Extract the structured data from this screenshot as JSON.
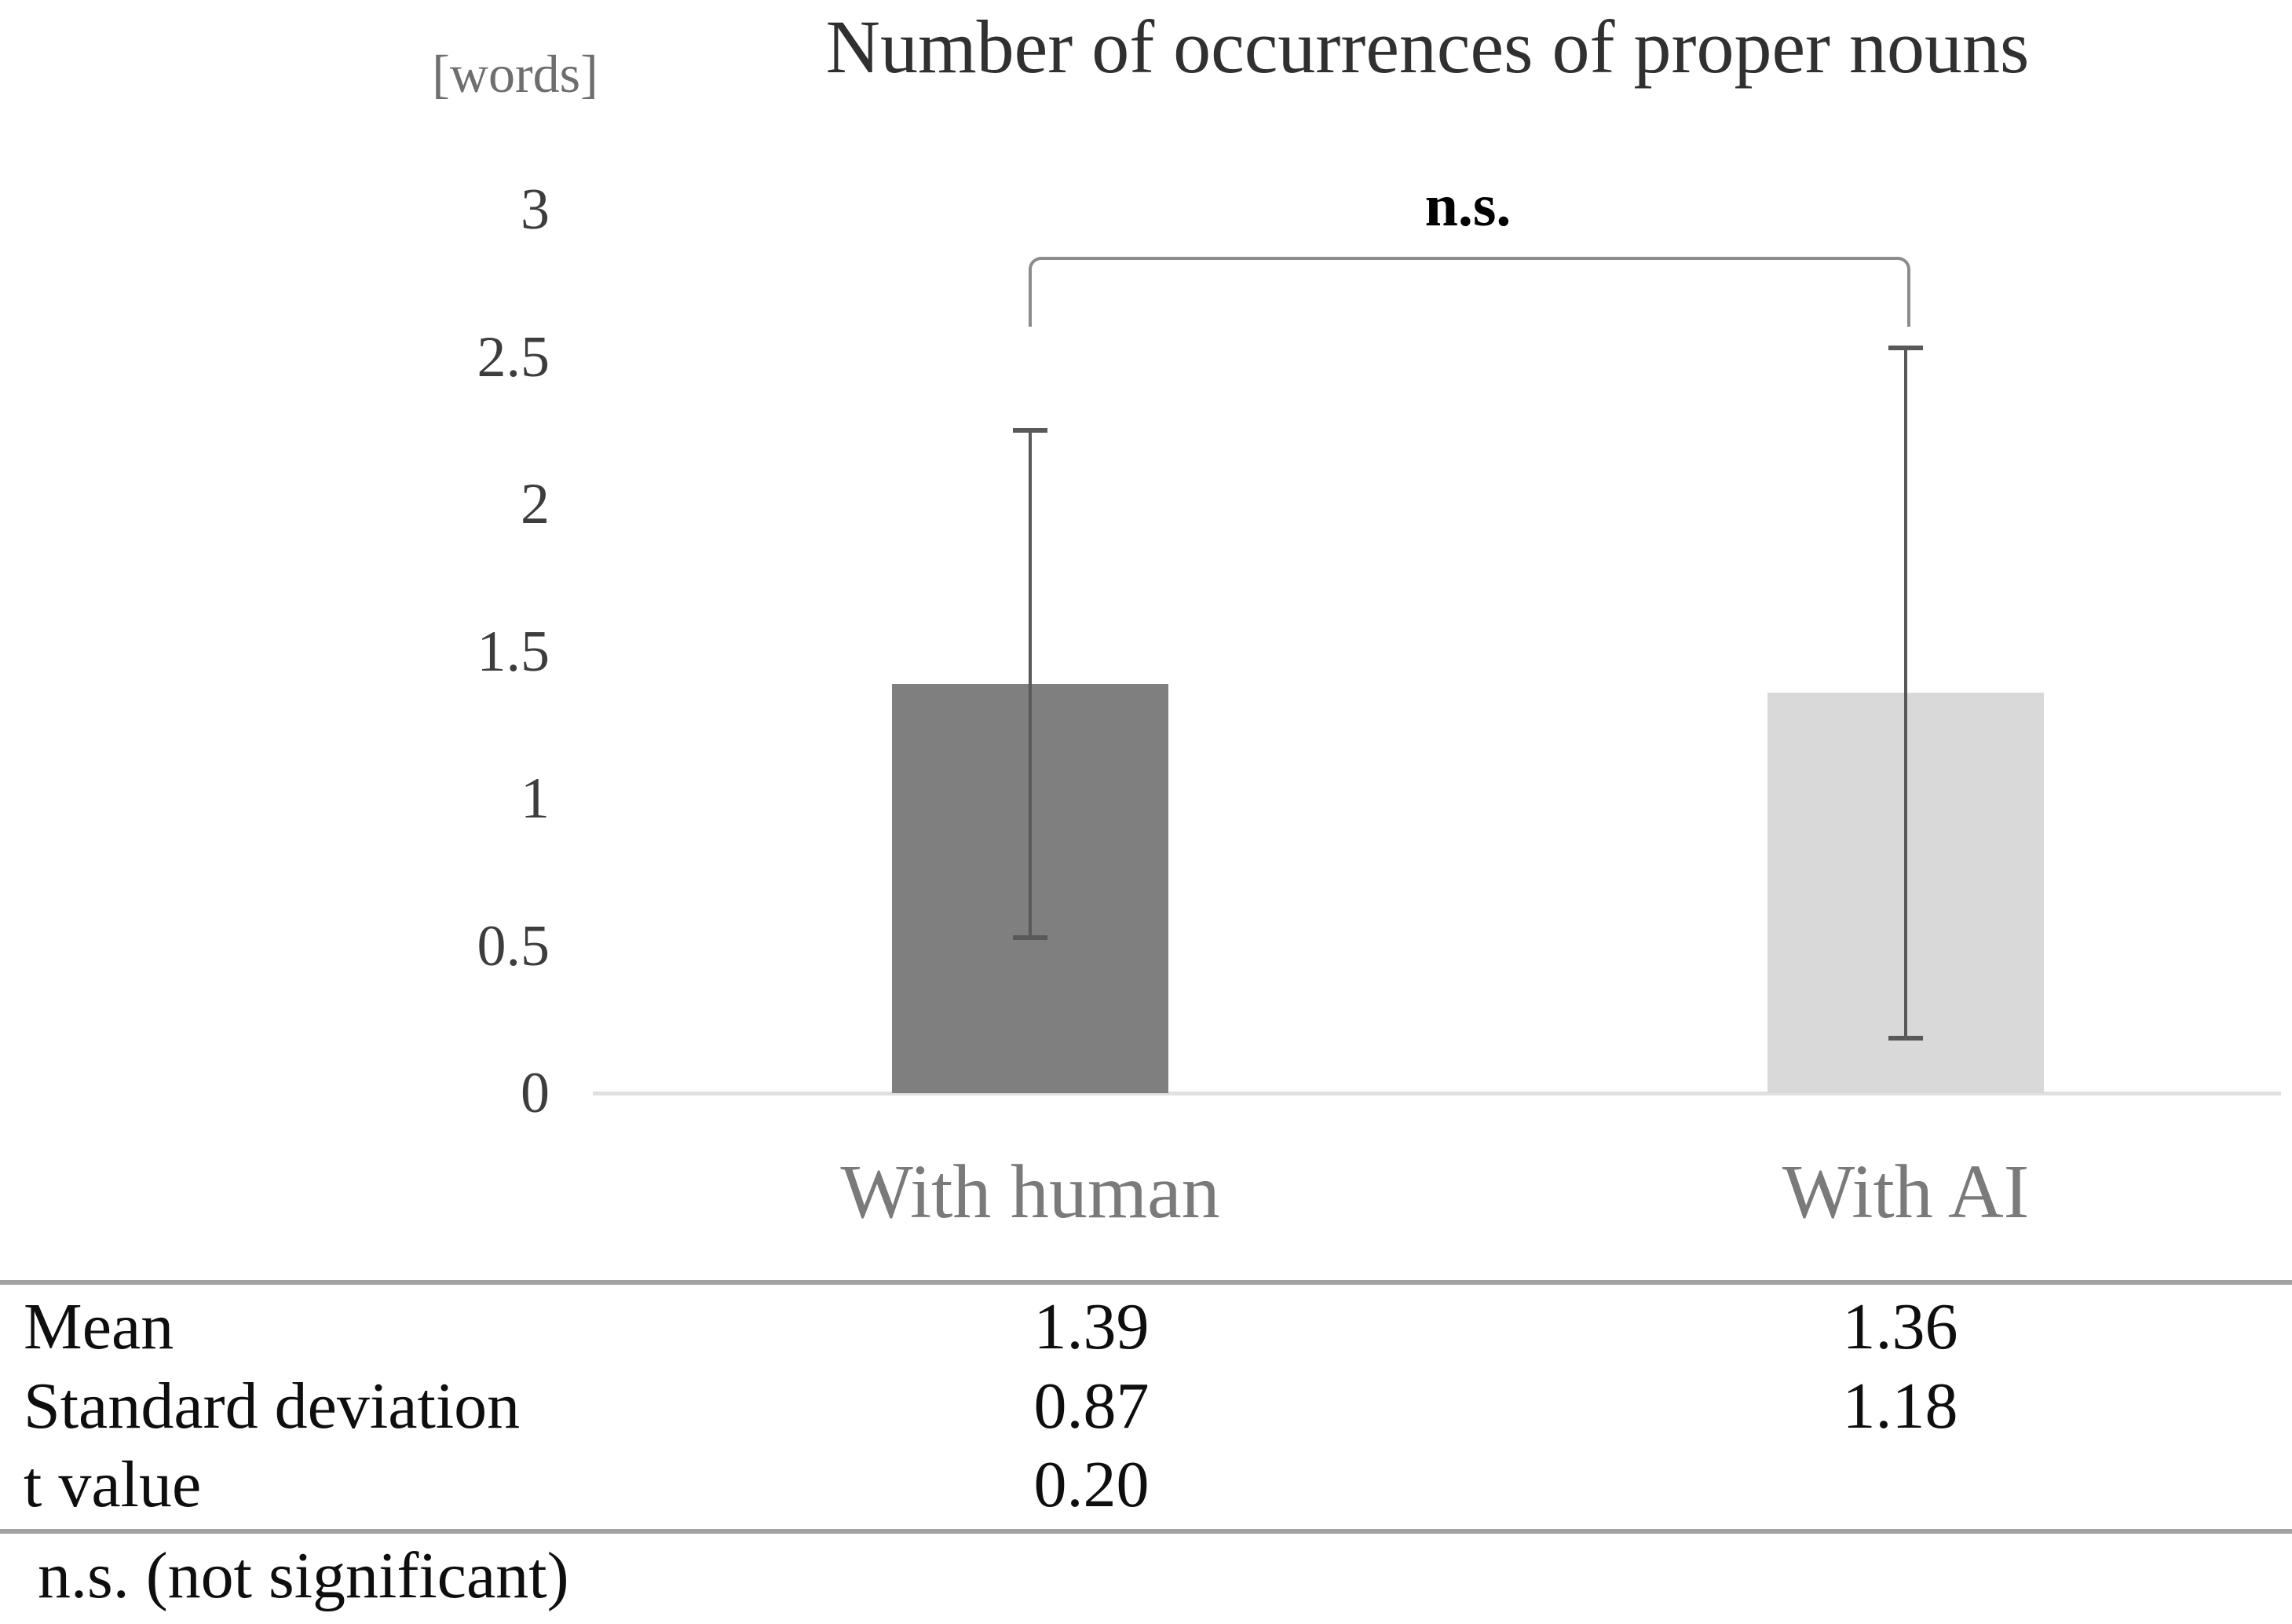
{
  "chart": {
    "title": "Number of occurrences of proper nouns",
    "units_label": "[words]",
    "significance_label": "n.s.",
    "yticks": [
      "3",
      "2.5",
      "2",
      "1.5",
      "1",
      "0.5",
      "0"
    ],
    "colors": {
      "bar_with_human": "#7f7f7f",
      "bar_with_ai": "#d9d9d9",
      "error_bar": "#595959",
      "bracket": "#8c8c8c",
      "axis_line": "#e0e0e0"
    }
  },
  "chart_data": {
    "type": "bar",
    "title": "Number of occurrences of proper nouns",
    "ylabel": "[words]",
    "categories": [
      "With human",
      "With AI"
    ],
    "series": [
      {
        "name": "Mean",
        "values": [
          1.39,
          1.36
        ]
      }
    ],
    "error_bars": {
      "label": "Standard deviation",
      "values": [
        0.87,
        1.18
      ]
    },
    "ylim": [
      0,
      3
    ],
    "ytick_step": 0.5,
    "grid": false,
    "legend": "none",
    "bar_colors": [
      "#7f7f7f",
      "#d9d9d9"
    ],
    "annotation": {
      "text": "n.s.",
      "spans": [
        "With human",
        "With AI"
      ]
    }
  },
  "table": {
    "rows": [
      {
        "label": "Mean",
        "values": [
          "1.39",
          "1.36"
        ]
      },
      {
        "label": "Standard deviation",
        "values": [
          "0.87",
          "1.18"
        ]
      },
      {
        "label": "t value",
        "values": [
          "0.20",
          ""
        ]
      }
    ]
  },
  "footnote": "n.s. (not significant)"
}
